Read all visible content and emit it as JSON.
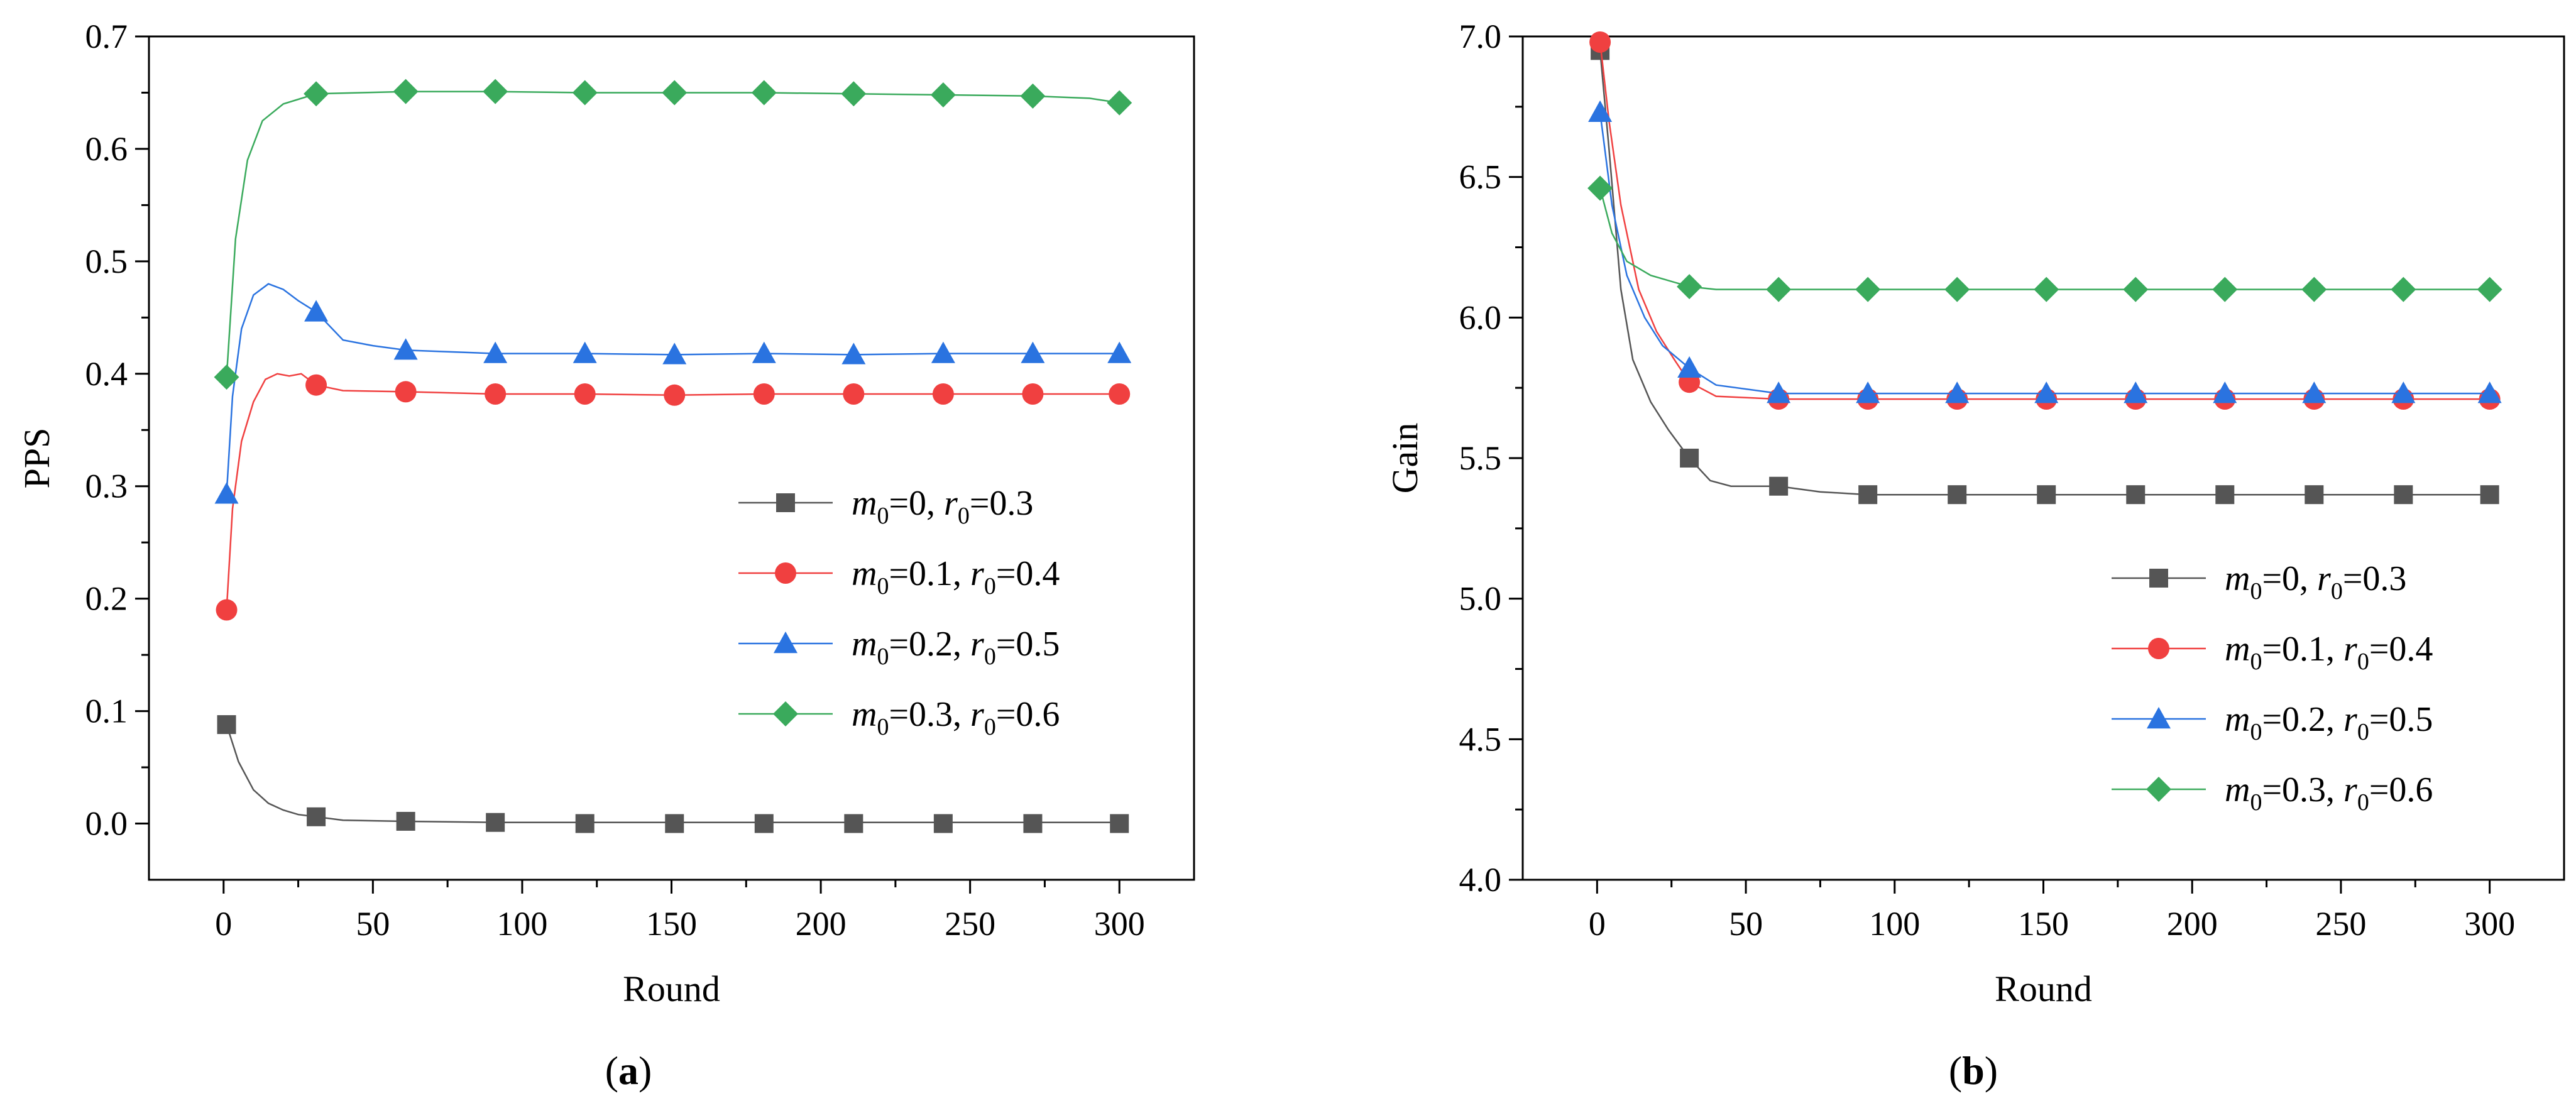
{
  "chart_data": [
    {
      "type": "line",
      "panel_label": {
        "open": "(",
        "letter": "a",
        "close": ")"
      },
      "title": "",
      "xlabel": "Round",
      "ylabel": "PPS",
      "xlim": [
        -25,
        325
      ],
      "ylim": [
        -0.05,
        0.7
      ],
      "xticks": [
        0,
        50,
        100,
        150,
        200,
        250,
        300
      ],
      "yticks": [
        0.0,
        0.1,
        0.2,
        0.3,
        0.4,
        0.5,
        0.6,
        0.7
      ],
      "xtick_labels": [
        "0",
        "50",
        "100",
        "150",
        "200",
        "250",
        "300"
      ],
      "ytick_labels": [
        "0.0",
        "0.1",
        "0.2",
        "0.3",
        "0.4",
        "0.5",
        "0.6",
        "0.7"
      ],
      "legend_position": "center-right",
      "series": [
        {
          "name": "m0=0, r0=0.3",
          "label": {
            "m": "m",
            "m_sub": "0",
            "m_val": "=0, ",
            "r": "r",
            "r_sub": "0",
            "r_val": "=0.3"
          },
          "color": "#555555",
          "marker": "square",
          "line": [
            [
              1,
              0.088
            ],
            [
              5,
              0.055
            ],
            [
              10,
              0.03
            ],
            [
              15,
              0.018
            ],
            [
              20,
              0.012
            ],
            [
              25,
              0.008
            ],
            [
              31,
              0.006
            ],
            [
              40,
              0.003
            ],
            [
              61,
              0.002
            ],
            [
              91,
              0.001
            ],
            [
              300,
              0.001
            ]
          ],
          "markers": [
            [
              1,
              0.088
            ],
            [
              31,
              0.006
            ],
            [
              61,
              0.002
            ],
            [
              91,
              0.001
            ],
            [
              121,
              0.0
            ],
            [
              151,
              0.0
            ],
            [
              181,
              0.0
            ],
            [
              211,
              0.0
            ],
            [
              241,
              0.0
            ],
            [
              271,
              0.0
            ],
            [
              300,
              0.0
            ]
          ]
        },
        {
          "name": "m0=0.1, r0=0.4",
          "label": {
            "m": "m",
            "m_sub": "0",
            "m_val": "=0.1, ",
            "r": "r",
            "r_sub": "0",
            "r_val": "=0.4"
          },
          "color": "#f04040",
          "marker": "circle",
          "line": [
            [
              1,
              0.19
            ],
            [
              3,
              0.28
            ],
            [
              6,
              0.34
            ],
            [
              10,
              0.375
            ],
            [
              14,
              0.395
            ],
            [
              18,
              0.4
            ],
            [
              22,
              0.398
            ],
            [
              26,
              0.4
            ],
            [
              31,
              0.39
            ],
            [
              40,
              0.385
            ],
            [
              61,
              0.384
            ],
            [
              91,
              0.382
            ],
            [
              121,
              0.382
            ],
            [
              151,
              0.381
            ],
            [
              181,
              0.382
            ],
            [
              211,
              0.382
            ],
            [
              241,
              0.382
            ],
            [
              271,
              0.382
            ],
            [
              300,
              0.382
            ]
          ],
          "markers": [
            [
              1,
              0.19
            ],
            [
              31,
              0.39
            ],
            [
              61,
              0.384
            ],
            [
              91,
              0.382
            ],
            [
              121,
              0.382
            ],
            [
              151,
              0.381
            ],
            [
              181,
              0.382
            ],
            [
              211,
              0.382
            ],
            [
              241,
              0.382
            ],
            [
              271,
              0.382
            ],
            [
              300,
              0.382
            ]
          ]
        },
        {
          "name": "m0=0.2, r0=0.5",
          "label": {
            "m": "m",
            "m_sub": "0",
            "m_val": "=0.2, ",
            "r": "r",
            "r_sub": "0",
            "r_val": "=0.5"
          },
          "color": "#2a73e0",
          "marker": "triangle",
          "line": [
            [
              1,
              0.293
            ],
            [
              3,
              0.38
            ],
            [
              6,
              0.44
            ],
            [
              10,
              0.47
            ],
            [
              15,
              0.48
            ],
            [
              20,
              0.475
            ],
            [
              25,
              0.465
            ],
            [
              31,
              0.455
            ],
            [
              40,
              0.43
            ],
            [
              50,
              0.425
            ],
            [
              61,
              0.421
            ],
            [
              91,
              0.418
            ],
            [
              121,
              0.418
            ],
            [
              151,
              0.417
            ],
            [
              181,
              0.418
            ],
            [
              211,
              0.417
            ],
            [
              241,
              0.418
            ],
            [
              271,
              0.418
            ],
            [
              300,
              0.418
            ]
          ],
          "markers": [
            [
              1,
              0.293
            ],
            [
              31,
              0.455
            ],
            [
              61,
              0.421
            ],
            [
              91,
              0.418
            ],
            [
              121,
              0.418
            ],
            [
              151,
              0.417
            ],
            [
              181,
              0.418
            ],
            [
              211,
              0.417
            ],
            [
              241,
              0.418
            ],
            [
              271,
              0.418
            ],
            [
              300,
              0.418
            ]
          ]
        },
        {
          "name": "m0=0.3, r0=0.6",
          "label": {
            "m": "m",
            "m_sub": "0",
            "m_val": "=0.3, ",
            "r": "r",
            "r_sub": "0",
            "r_val": "=0.6"
          },
          "color": "#3aaa5c",
          "marker": "diamond",
          "line": [
            [
              1,
              0.397
            ],
            [
              4,
              0.52
            ],
            [
              8,
              0.59
            ],
            [
              13,
              0.625
            ],
            [
              20,
              0.64
            ],
            [
              31,
              0.649
            ],
            [
              61,
              0.651
            ],
            [
              91,
              0.651
            ],
            [
              121,
              0.65
            ],
            [
              151,
              0.65
            ],
            [
              181,
              0.65
            ],
            [
              211,
              0.649
            ],
            [
              241,
              0.648
            ],
            [
              271,
              0.647
            ],
            [
              290,
              0.645
            ],
            [
              300,
              0.641
            ]
          ],
          "markers": [
            [
              1,
              0.397
            ],
            [
              31,
              0.649
            ],
            [
              61,
              0.651
            ],
            [
              91,
              0.651
            ],
            [
              121,
              0.65
            ],
            [
              151,
              0.65
            ],
            [
              181,
              0.65
            ],
            [
              211,
              0.649
            ],
            [
              241,
              0.648
            ],
            [
              271,
              0.647
            ],
            [
              300,
              0.641
            ]
          ]
        }
      ]
    },
    {
      "type": "line",
      "panel_label": {
        "open": "(",
        "letter": "b",
        "close": ")"
      },
      "title": "",
      "xlabel": "Round",
      "ylabel": "Gain",
      "xlim": [
        -25,
        325
      ],
      "ylim": [
        4.0,
        7.0
      ],
      "xticks": [
        0,
        50,
        100,
        150,
        200,
        250,
        300
      ],
      "yticks": [
        4.0,
        4.5,
        5.0,
        5.5,
        6.0,
        6.5,
        7.0
      ],
      "xtick_labels": [
        "0",
        "50",
        "100",
        "150",
        "200",
        "250",
        "300"
      ],
      "ytick_labels": [
        "4.0",
        "4.5",
        "5.0",
        "5.5",
        "6.0",
        "6.5",
        "7.0"
      ],
      "legend_position": "center-right",
      "series": [
        {
          "name": "m0=0, r0=0.3",
          "label": {
            "m": "m",
            "m_sub": "0",
            "m_val": "=0, ",
            "r": "r",
            "r_sub": "0",
            "r_val": "=0.3"
          },
          "color": "#555555",
          "marker": "square",
          "line": [
            [
              1,
              6.95
            ],
            [
              4,
              6.6
            ],
            [
              8,
              6.1
            ],
            [
              12,
              5.85
            ],
            [
              18,
              5.7
            ],
            [
              24,
              5.6
            ],
            [
              31,
              5.5
            ],
            [
              38,
              5.42
            ],
            [
              45,
              5.4
            ],
            [
              61,
              5.4
            ],
            [
              75,
              5.38
            ],
            [
              91,
              5.37
            ],
            [
              300,
              5.37
            ]
          ],
          "markers": [
            [
              1,
              6.95
            ],
            [
              31,
              5.5
            ],
            [
              61,
              5.4
            ],
            [
              91,
              5.37
            ],
            [
              121,
              5.37
            ],
            [
              151,
              5.37
            ],
            [
              181,
              5.37
            ],
            [
              211,
              5.37
            ],
            [
              241,
              5.37
            ],
            [
              271,
              5.37
            ],
            [
              300,
              5.37
            ]
          ]
        },
        {
          "name": "m0=0.1, r0=0.4",
          "label": {
            "m": "m",
            "m_sub": "0",
            "m_val": "=0.1, ",
            "r": "r",
            "r_sub": "0",
            "r_val": "=0.4"
          },
          "color": "#f04040",
          "marker": "circle",
          "line": [
            [
              1,
              6.98
            ],
            [
              4,
              6.7
            ],
            [
              8,
              6.4
            ],
            [
              14,
              6.1
            ],
            [
              20,
              5.95
            ],
            [
              26,
              5.85
            ],
            [
              31,
              5.77
            ],
            [
              40,
              5.72
            ],
            [
              61,
              5.71
            ],
            [
              300,
              5.71
            ]
          ],
          "markers": [
            [
              1,
              6.98
            ],
            [
              31,
              5.77
            ],
            [
              61,
              5.71
            ],
            [
              91,
              5.71
            ],
            [
              121,
              5.71
            ],
            [
              151,
              5.71
            ],
            [
              181,
              5.71
            ],
            [
              211,
              5.71
            ],
            [
              241,
              5.71
            ],
            [
              271,
              5.71
            ],
            [
              300,
              5.71
            ]
          ]
        },
        {
          "name": "m0=0.2, r0=0.5",
          "label": {
            "m": "m",
            "m_sub": "0",
            "m_val": "=0.2, ",
            "r": "r",
            "r_sub": "0",
            "r_val": "=0.5"
          },
          "color": "#2a73e0",
          "marker": "triangle",
          "line": [
            [
              1,
              6.73
            ],
            [
              5,
              6.4
            ],
            [
              10,
              6.15
            ],
            [
              16,
              6.0
            ],
            [
              22,
              5.9
            ],
            [
              31,
              5.82
            ],
            [
              40,
              5.76
            ],
            [
              61,
              5.73
            ],
            [
              300,
              5.73
            ]
          ],
          "markers": [
            [
              1,
              6.73
            ],
            [
              31,
              5.82
            ],
            [
              61,
              5.73
            ],
            [
              91,
              5.73
            ],
            [
              121,
              5.73
            ],
            [
              151,
              5.73
            ],
            [
              181,
              5.73
            ],
            [
              211,
              5.73
            ],
            [
              241,
              5.73
            ],
            [
              271,
              5.73
            ],
            [
              300,
              5.73
            ]
          ]
        },
        {
          "name": "m0=0.3, r0=0.6",
          "label": {
            "m": "m",
            "m_sub": "0",
            "m_val": "=0.3, ",
            "r": "r",
            "r_sub": "0",
            "r_val": "=0.6"
          },
          "color": "#3aaa5c",
          "marker": "diamond",
          "line": [
            [
              1,
              6.46
            ],
            [
              5,
              6.3
            ],
            [
              10,
              6.2
            ],
            [
              18,
              6.15
            ],
            [
              31,
              6.11
            ],
            [
              40,
              6.1
            ],
            [
              300,
              6.1
            ]
          ],
          "markers": [
            [
              1,
              6.46
            ],
            [
              31,
              6.11
            ],
            [
              61,
              6.1
            ],
            [
              91,
              6.1
            ],
            [
              121,
              6.1
            ],
            [
              151,
              6.1
            ],
            [
              181,
              6.1
            ],
            [
              211,
              6.1
            ],
            [
              241,
              6.1
            ],
            [
              271,
              6.1
            ],
            [
              300,
              6.1
            ]
          ]
        }
      ]
    }
  ]
}
